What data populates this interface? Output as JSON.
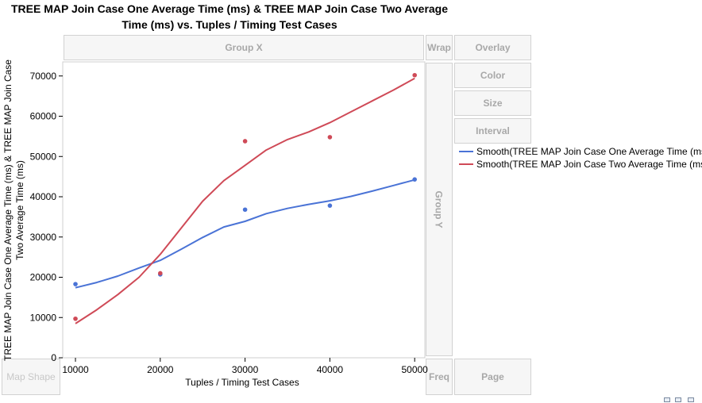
{
  "chart_data": {
    "type": "scatter",
    "title": "TREE MAP Join Case One Average Time (ms)  & TREE MAP Join Case Two Average Time (ms) vs. Tuples / Timing Test Cases",
    "title_lines": [
      "TREE MAP Join Case One Average Time (ms)  & TREE MAP Join Case Two Average",
      "Time (ms) vs. Tuples / Timing Test Cases"
    ],
    "xlabel": "Tuples / Timing Test Cases",
    "ylabel_lines": [
      "TREE MAP Join Case One Average Time (ms) & TREE MAP Join Case",
      "Two Average Time (ms)"
    ],
    "xlim": [
      8500,
      51200
    ],
    "ylim": [
      0,
      73500
    ],
    "x_ticks": [
      10000,
      20000,
      30000,
      40000,
      50000
    ],
    "y_ticks": [
      0,
      10000,
      20000,
      30000,
      40000,
      50000,
      60000,
      70000
    ],
    "grid": false,
    "legend_position": "right",
    "series": [
      {
        "name": "Smooth(TREE MAP Join Case One Average Time (ms))",
        "color": "#4a73d6",
        "points": [
          [
            10000,
            18300
          ],
          [
            20000,
            20700
          ],
          [
            30000,
            36800
          ],
          [
            40000,
            37800
          ],
          [
            50000,
            44300
          ]
        ],
        "smooth": [
          [
            10000,
            17400
          ],
          [
            12500,
            18700
          ],
          [
            15000,
            20300
          ],
          [
            17500,
            22300
          ],
          [
            20000,
            24200
          ],
          [
            22500,
            27000
          ],
          [
            25000,
            29900
          ],
          [
            27500,
            32500
          ],
          [
            30000,
            33900
          ],
          [
            32500,
            35800
          ],
          [
            35000,
            37100
          ],
          [
            37500,
            38100
          ],
          [
            40000,
            39000
          ],
          [
            42500,
            40100
          ],
          [
            45000,
            41400
          ],
          [
            47500,
            42800
          ],
          [
            50000,
            44200
          ]
        ]
      },
      {
        "name": "Smooth(TREE MAP Join Case Two Average Time (ms))",
        "color": "#cf4a57",
        "points": [
          [
            10000,
            9700
          ],
          [
            20000,
            21000
          ],
          [
            30000,
            53800
          ],
          [
            40000,
            54800
          ],
          [
            50000,
            70200
          ]
        ],
        "smooth": [
          [
            10000,
            8500
          ],
          [
            12500,
            11900
          ],
          [
            15000,
            15700
          ],
          [
            17500,
            20000
          ],
          [
            20000,
            25700
          ],
          [
            22500,
            32300
          ],
          [
            25000,
            38900
          ],
          [
            27500,
            44000
          ],
          [
            30000,
            47800
          ],
          [
            32500,
            51600
          ],
          [
            35000,
            54200
          ],
          [
            37500,
            56100
          ],
          [
            40000,
            58400
          ],
          [
            42500,
            61100
          ],
          [
            45000,
            63800
          ],
          [
            47500,
            66500
          ],
          [
            50000,
            69400
          ]
        ]
      }
    ]
  },
  "zones": {
    "group_x": "Group X",
    "group_y": "Group Y",
    "wrap": "Wrap",
    "overlay": "Overlay",
    "color": "Color",
    "size": "Size",
    "interval": "Interval",
    "freq": "Freq",
    "page": "Page",
    "map_shape": "Map Shape"
  }
}
